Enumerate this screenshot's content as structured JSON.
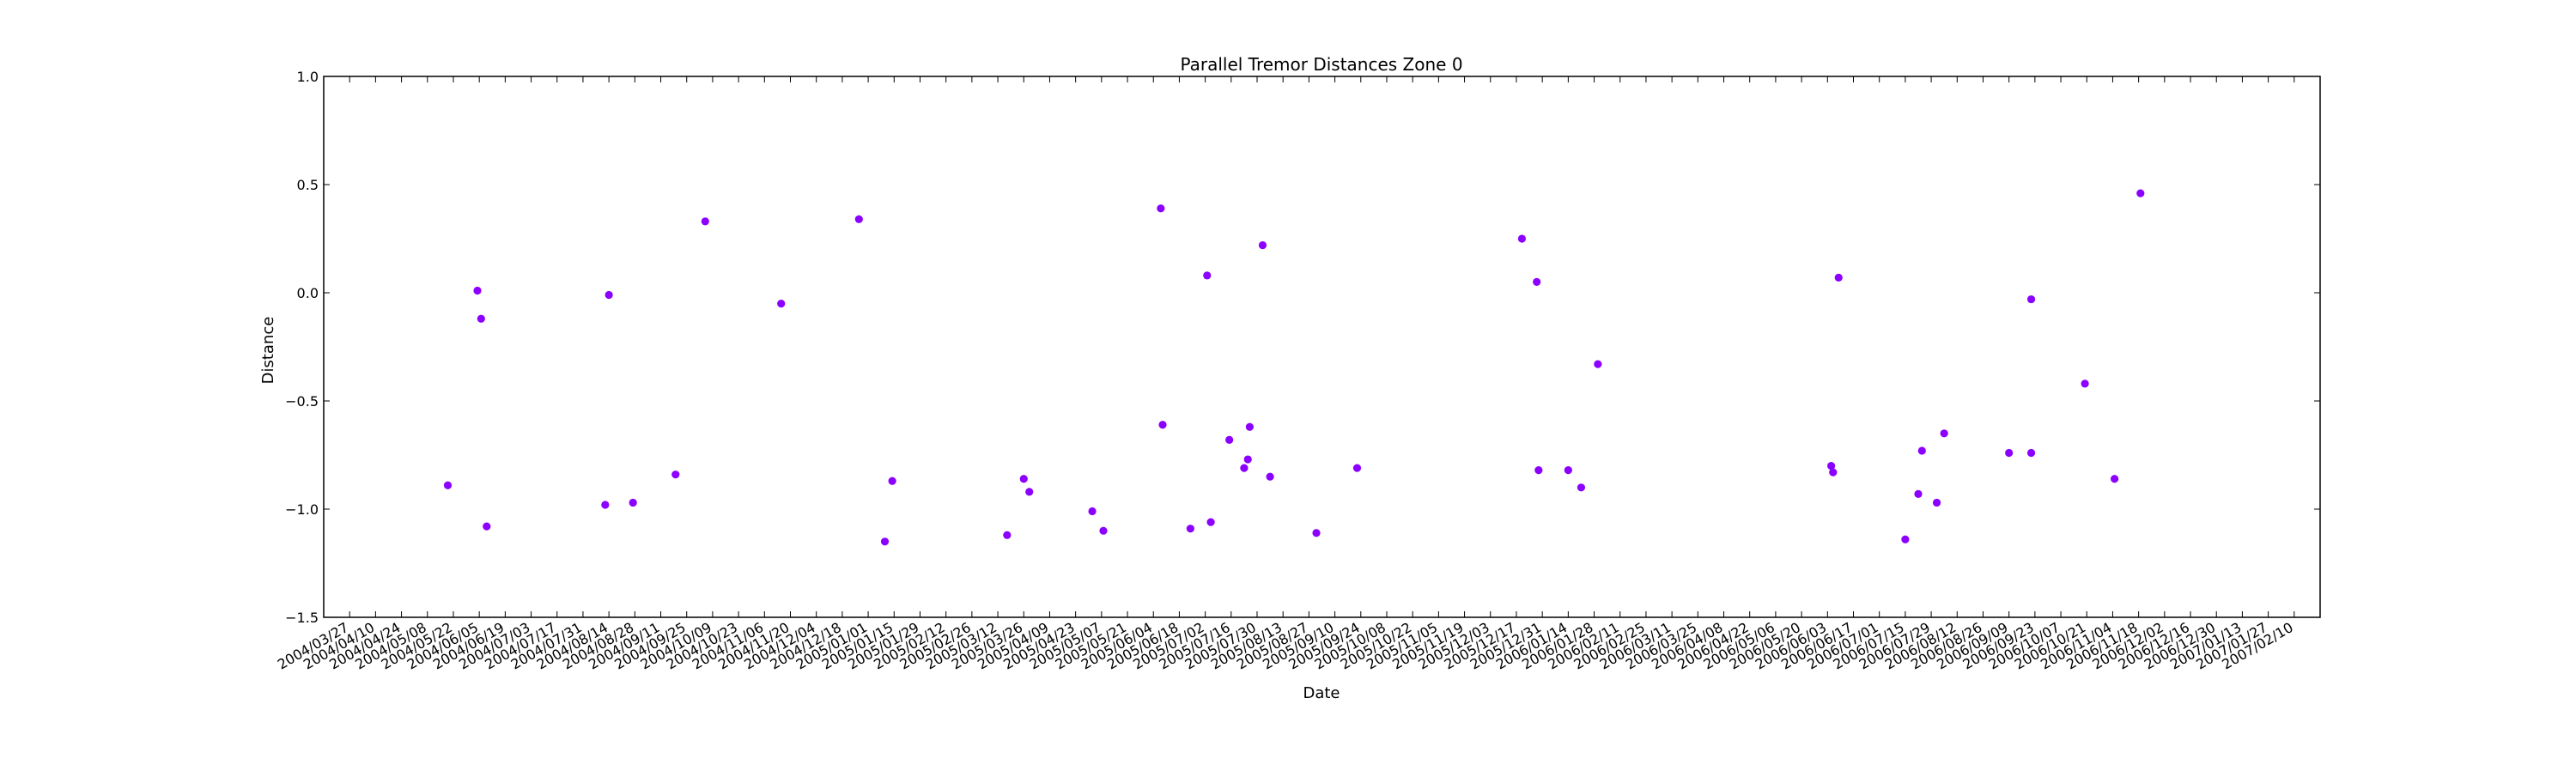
{
  "chart_data": {
    "type": "scatter",
    "title": "Parallel Tremor Distances Zone 0",
    "xlabel": "Date",
    "ylabel": "Distance",
    "xlim": [
      "2004/03/13",
      "2007/02/24"
    ],
    "ylim": [
      -1.5,
      1.0
    ],
    "yticks": [
      -1.5,
      -1.0,
      -0.5,
      0.0,
      0.5,
      1.0
    ],
    "ytick_labels": [
      "−1.5",
      "−1.0",
      "−0.5",
      "0.0",
      "0.5",
      "1.0"
    ],
    "xticks": [
      "2004/03/27",
      "2004/04/10",
      "2004/04/24",
      "2004/05/08",
      "2004/05/22",
      "2004/06/05",
      "2004/06/19",
      "2004/07/03",
      "2004/07/17",
      "2004/07/31",
      "2004/08/14",
      "2004/08/28",
      "2004/09/11",
      "2004/09/25",
      "2004/10/09",
      "2004/10/23",
      "2004/11/06",
      "2004/11/20",
      "2004/12/04",
      "2004/12/18",
      "2005/01/01",
      "2005/01/15",
      "2005/01/29",
      "2005/02/12",
      "2005/02/26",
      "2005/03/12",
      "2005/03/26",
      "2005/04/09",
      "2005/04/23",
      "2005/05/07",
      "2005/05/21",
      "2005/06/04",
      "2005/06/18",
      "2005/07/02",
      "2005/07/16",
      "2005/07/30",
      "2005/08/13",
      "2005/08/27",
      "2005/09/10",
      "2005/09/24",
      "2005/10/08",
      "2005/10/22",
      "2005/11/05",
      "2005/11/19",
      "2005/12/03",
      "2005/12/17",
      "2005/12/31",
      "2006/01/14",
      "2006/01/28",
      "2006/02/11",
      "2006/02/25",
      "2006/03/11",
      "2006/03/25",
      "2006/04/08",
      "2006/04/22",
      "2006/05/06",
      "2006/05/20",
      "2006/06/03",
      "2006/06/17",
      "2006/07/01",
      "2006/07/15",
      "2006/07/29",
      "2006/08/12",
      "2006/08/26",
      "2006/09/09",
      "2006/09/23",
      "2006/10/07",
      "2006/10/21",
      "2006/11/04",
      "2006/11/18",
      "2006/12/02",
      "2006/12/16",
      "2006/12/30",
      "2007/01/13",
      "2007/01/27",
      "2007/02/10"
    ],
    "grid": false,
    "marker_color": "#8B00FF",
    "points": [
      {
        "x": "2004/05/19",
        "y": -0.89
      },
      {
        "x": "2004/06/04",
        "y": 0.01
      },
      {
        "x": "2004/06/06",
        "y": -0.12
      },
      {
        "x": "2004/06/09",
        "y": -1.08
      },
      {
        "x": "2004/08/12",
        "y": -0.98
      },
      {
        "x": "2004/08/14",
        "y": -0.01
      },
      {
        "x": "2004/08/27",
        "y": -0.97
      },
      {
        "x": "2004/09/19",
        "y": -0.84
      },
      {
        "x": "2004/10/05",
        "y": 0.33
      },
      {
        "x": "2004/11/15",
        "y": -0.05
      },
      {
        "x": "2004/12/27",
        "y": 0.34
      },
      {
        "x": "2005/01/10",
        "y": -1.15
      },
      {
        "x": "2005/01/14",
        "y": -0.87
      },
      {
        "x": "2005/03/17",
        "y": -1.12
      },
      {
        "x": "2005/03/26",
        "y": -0.86
      },
      {
        "x": "2005/03/29",
        "y": -0.92
      },
      {
        "x": "2005/05/02",
        "y": -1.01
      },
      {
        "x": "2005/05/08",
        "y": -1.1
      },
      {
        "x": "2005/06/08",
        "y": 0.39
      },
      {
        "x": "2005/06/09",
        "y": -0.61
      },
      {
        "x": "2005/06/24",
        "y": -1.09
      },
      {
        "x": "2005/07/03",
        "y": 0.08
      },
      {
        "x": "2005/07/05",
        "y": -1.06
      },
      {
        "x": "2005/07/15",
        "y": -0.68
      },
      {
        "x": "2005/07/23",
        "y": -0.81
      },
      {
        "x": "2005/07/25",
        "y": -0.77
      },
      {
        "x": "2005/07/26",
        "y": -0.62
      },
      {
        "x": "2005/08/02",
        "y": 0.22
      },
      {
        "x": "2005/08/06",
        "y": -0.85
      },
      {
        "x": "2005/08/31",
        "y": -1.11
      },
      {
        "x": "2005/09/22",
        "y": -0.81
      },
      {
        "x": "2005/12/20",
        "y": 0.25
      },
      {
        "x": "2005/12/28",
        "y": 0.05
      },
      {
        "x": "2005/12/29",
        "y": -0.82
      },
      {
        "x": "2006/01/14",
        "y": -0.82
      },
      {
        "x": "2006/01/21",
        "y": -0.9
      },
      {
        "x": "2006/01/30",
        "y": -0.33
      },
      {
        "x": "2006/06/05",
        "y": -0.8
      },
      {
        "x": "2006/06/06",
        "y": -0.83
      },
      {
        "x": "2006/06/09",
        "y": 0.07
      },
      {
        "x": "2006/07/15",
        "y": -1.14
      },
      {
        "x": "2006/07/22",
        "y": -0.93
      },
      {
        "x": "2006/07/24",
        "y": -0.73
      },
      {
        "x": "2006/08/01",
        "y": -0.97
      },
      {
        "x": "2006/08/05",
        "y": -0.65
      },
      {
        "x": "2006/09/09",
        "y": -0.74
      },
      {
        "x": "2006/09/21",
        "y": -0.74
      },
      {
        "x": "2006/09/21",
        "y": -0.03
      },
      {
        "x": "2006/10/20",
        "y": -0.42
      },
      {
        "x": "2006/11/05",
        "y": -0.86
      },
      {
        "x": "2006/11/19",
        "y": 0.46
      }
    ]
  }
}
